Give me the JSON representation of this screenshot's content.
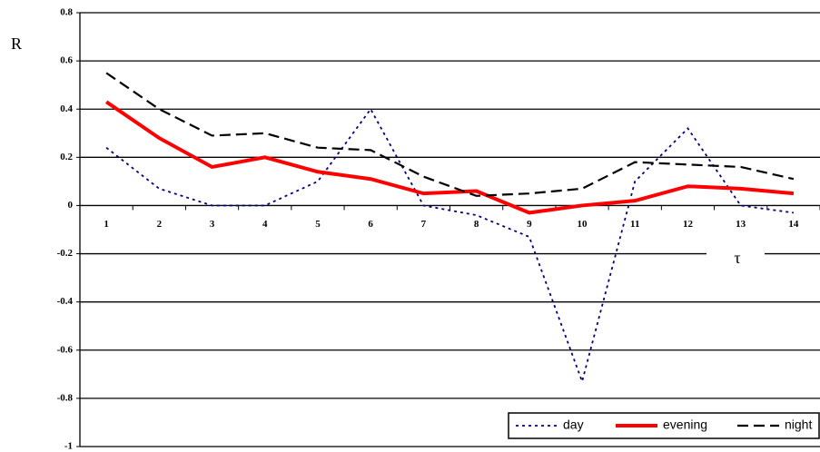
{
  "chart_data": {
    "type": "line",
    "y_label": "R",
    "x_label": "τ",
    "categories": [
      "1",
      "2",
      "3",
      "4",
      "5",
      "6",
      "7",
      "8",
      "9",
      "10",
      "11",
      "12",
      "13",
      "14"
    ],
    "series": [
      {
        "name": "day",
        "color": "#000080",
        "values": [
          0.24,
          0.07,
          0.0,
          0.0,
          0.1,
          0.4,
          0.0,
          -0.04,
          -0.13,
          -0.73,
          0.1,
          0.32,
          0.0,
          -0.03
        ]
      },
      {
        "name": "evening",
        "color": "#ff0000",
        "values": [
          0.43,
          0.28,
          0.16,
          0.2,
          0.14,
          0.11,
          0.05,
          0.06,
          -0.03,
          0.0,
          0.02,
          0.08,
          0.07,
          0.05
        ]
      },
      {
        "name": "night",
        "color": "#000000",
        "values": [
          0.55,
          0.4,
          0.29,
          0.3,
          0.24,
          0.23,
          0.12,
          0.04,
          0.05,
          0.07,
          0.18,
          0.17,
          0.16,
          0.11
        ]
      }
    ],
    "ylim": [
      -1,
      0.8
    ],
    "yticks": [
      -1,
      -0.8,
      -0.6,
      -0.4,
      -0.2,
      0,
      0.2,
      0.4,
      0.6,
      0.8
    ],
    "grid": true,
    "legend": "bottom-right"
  }
}
